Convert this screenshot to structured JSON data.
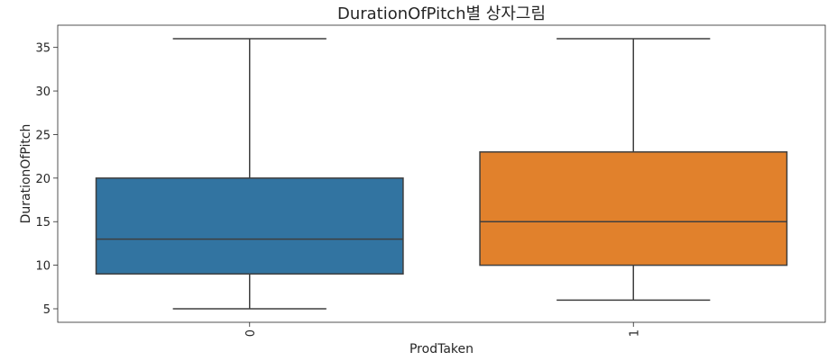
{
  "chart_data": {
    "type": "box",
    "title": "DurationOfPitch별 상자그림",
    "xlabel": "ProdTaken",
    "ylabel": "DurationOfPitch",
    "ylim": [
      3.45,
      37.55
    ],
    "yticks": [
      5,
      10,
      15,
      20,
      25,
      30,
      35
    ],
    "grid": false,
    "xtick_rotation": 90,
    "categories": [
      "0",
      "1"
    ],
    "boxes": [
      {
        "category": "0",
        "color": "#3274a1",
        "whisker_low": 5,
        "q1": 9,
        "median": 13,
        "q3": 20,
        "whisker_high": 36
      },
      {
        "category": "1",
        "color": "#e1812c",
        "whisker_low": 6,
        "q1": 10,
        "median": 15,
        "q3": 23,
        "whisker_high": 36
      }
    ]
  }
}
